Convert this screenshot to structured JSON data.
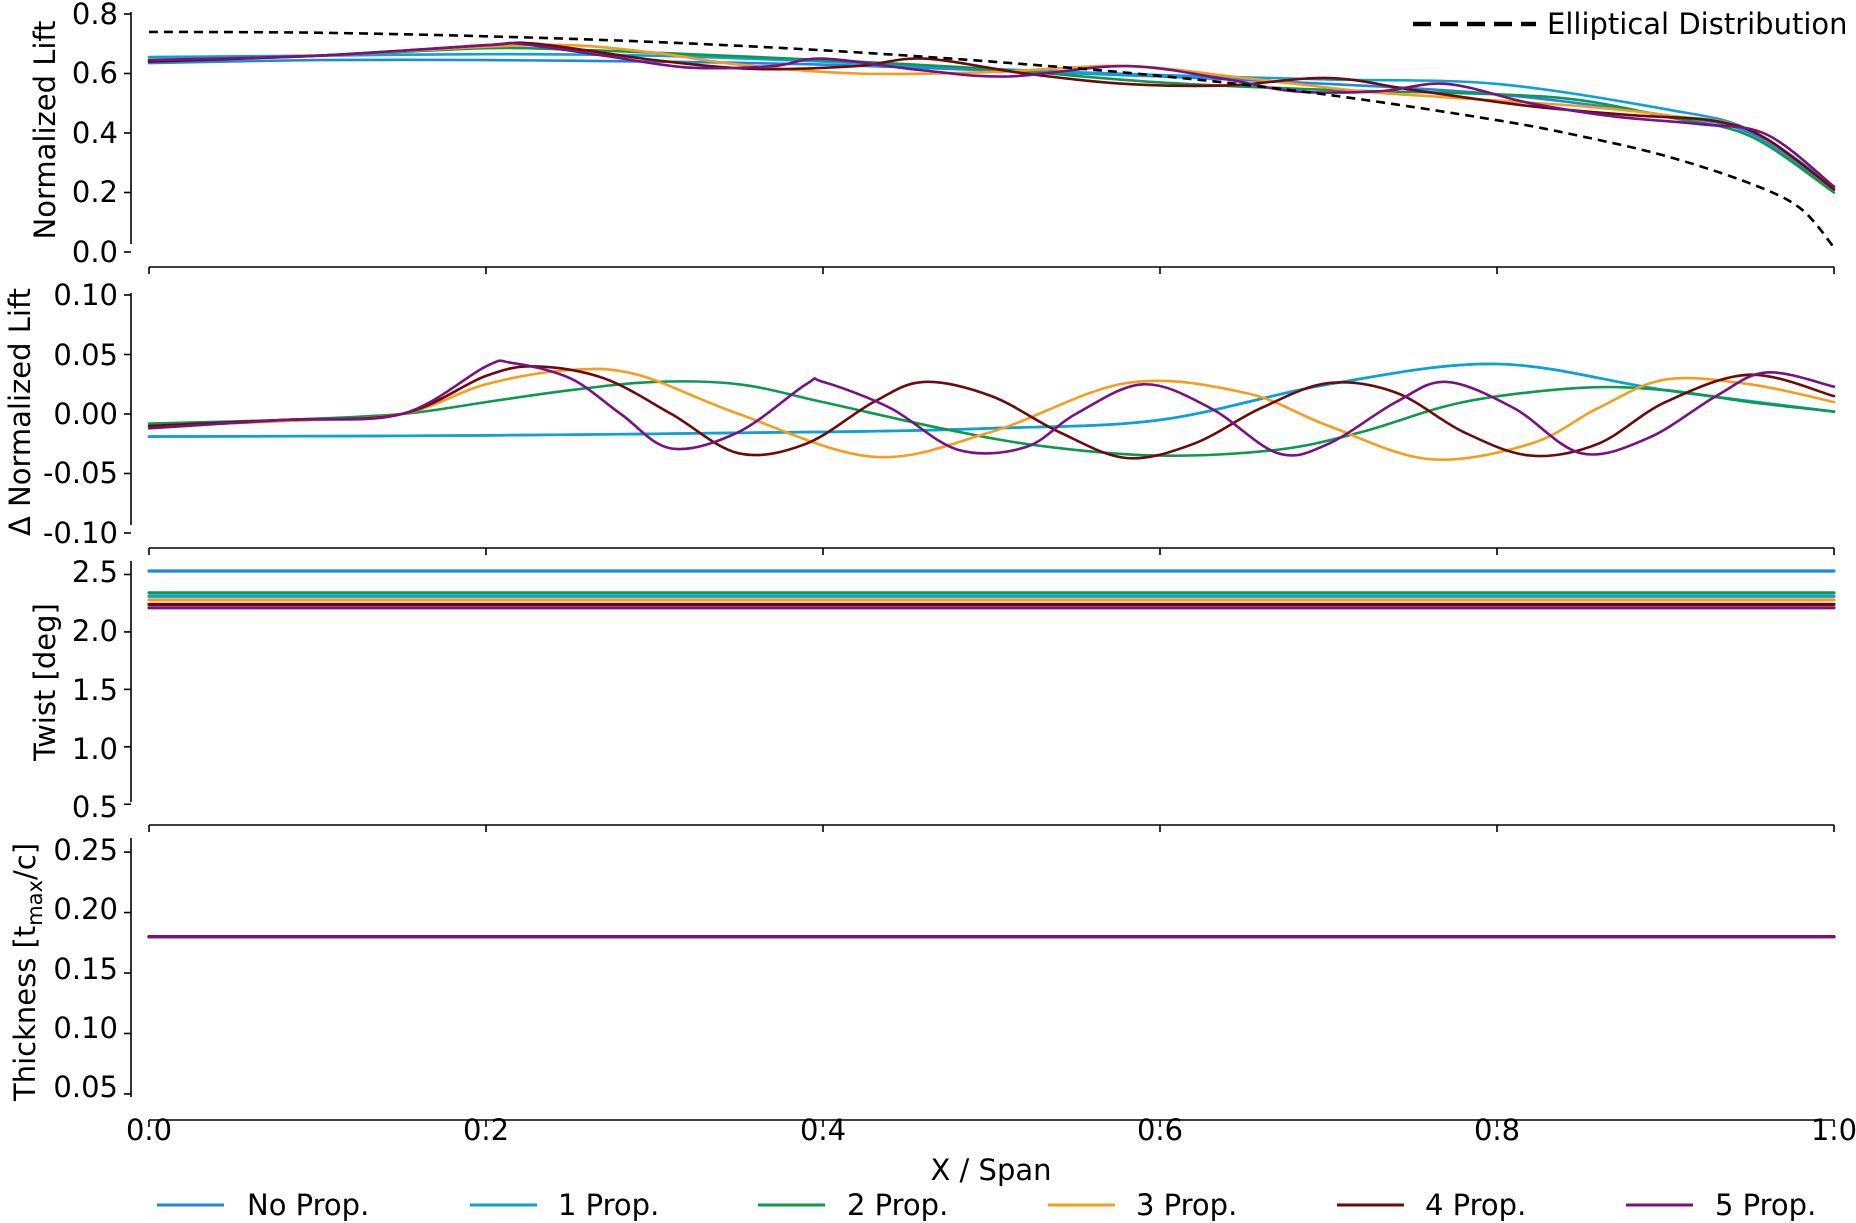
{
  "chart_data": {
    "type": "line",
    "x_label": "X / Span",
    "x_ticks": [
      "0.0",
      "0.2",
      "0.4",
      "0.6",
      "0.8",
      "1.0"
    ],
    "xlim": [
      0,
      1
    ],
    "legend": {
      "placement": "bottom",
      "entries": [
        {
          "name": "No Prop.",
          "color": "#1E88E5"
        },
        {
          "name": "1 Prop.",
          "color": "#0AA3D6"
        },
        {
          "name": "2 Prop.",
          "color": "#0B9A4E"
        },
        {
          "name": "3 Prop.",
          "color": "#F89C1C"
        },
        {
          "name": "4 Prop.",
          "color": "#6E0A0A"
        },
        {
          "name": "5 Prop.",
          "color": "#7A1183"
        }
      ]
    },
    "panels": [
      {
        "id": "lift",
        "ylabel": "Normalized Lift",
        "ylim": [
          0,
          0.8
        ],
        "yticks": [
          "0.0",
          "0.2",
          "0.4",
          "0.6",
          "0.8"
        ],
        "extra_legend": {
          "name": "Elliptical Distribution",
          "placement": "top-right",
          "style": "dashed",
          "color": "#000000"
        },
        "elliptical": {
          "x": [
            0.0,
            0.1,
            0.2,
            0.3,
            0.4,
            0.5,
            0.6,
            0.7,
            0.8,
            0.85,
            0.9,
            0.95,
            0.98,
            1.0
          ],
          "y": [
            0.74,
            0.737,
            0.725,
            0.706,
            0.678,
            0.64,
            0.592,
            0.528,
            0.443,
            0.389,
            0.323,
            0.231,
            0.147,
            0.015
          ]
        },
        "series": [
          {
            "name": "No Prop.",
            "x": [
              0.0,
              0.1,
              0.2,
              0.3,
              0.4,
              0.5,
              0.6,
              0.7,
              0.8,
              0.9,
              0.95,
              1.0
            ],
            "y": [
              0.635,
              0.645,
              0.645,
              0.64,
              0.63,
              0.61,
              0.59,
              0.565,
              0.53,
              0.46,
              0.4,
              0.21
            ]
          },
          {
            "name": "1 Prop.",
            "x": [
              0.0,
              0.1,
              0.2,
              0.3,
              0.4,
              0.5,
              0.6,
              0.7,
              0.8,
              0.9,
              0.95,
              1.0
            ],
            "y": [
              0.655,
              0.66,
              0.665,
              0.66,
              0.64,
              0.615,
              0.595,
              0.58,
              0.565,
              0.48,
              0.41,
              0.22
            ]
          },
          {
            "name": "2 Prop.",
            "x": [
              0.0,
              0.1,
              0.2,
              0.25,
              0.3,
              0.4,
              0.5,
              0.6,
              0.7,
              0.8,
              0.85,
              0.9,
              0.95,
              1.0
            ],
            "y": [
              0.645,
              0.66,
              0.685,
              0.68,
              0.67,
              0.645,
              0.615,
              0.57,
              0.545,
              0.53,
              0.51,
              0.455,
              0.39,
              0.2
            ]
          },
          {
            "name": "3 Prop.",
            "x": [
              0.0,
              0.1,
              0.2,
              0.25,
              0.3,
              0.35,
              0.42,
              0.5,
              0.58,
              0.65,
              0.72,
              0.77,
              0.85,
              0.9,
              0.95,
              1.0
            ],
            "y": [
              0.645,
              0.66,
              0.69,
              0.695,
              0.67,
              0.63,
              0.6,
              0.605,
              0.625,
              0.585,
              0.54,
              0.52,
              0.49,
              0.46,
              0.41,
              0.21
            ]
          },
          {
            "name": "4 Prop.",
            "x": [
              0.0,
              0.1,
              0.2,
              0.23,
              0.3,
              0.36,
              0.42,
              0.46,
              0.52,
              0.58,
              0.64,
              0.7,
              0.75,
              0.82,
              0.88,
              0.93,
              0.96,
              1.0
            ],
            "y": [
              0.64,
              0.66,
              0.695,
              0.7,
              0.645,
              0.615,
              0.625,
              0.65,
              0.6,
              0.565,
              0.56,
              0.585,
              0.545,
              0.49,
              0.46,
              0.44,
              0.38,
              0.21
            ]
          },
          {
            "name": "5 Prop.",
            "x": [
              0.0,
              0.1,
              0.2,
              0.22,
              0.27,
              0.32,
              0.37,
              0.4,
              0.46,
              0.51,
              0.58,
              0.64,
              0.68,
              0.73,
              0.77,
              0.82,
              0.87,
              0.92,
              0.96,
              1.0
            ],
            "y": [
              0.645,
              0.66,
              0.695,
              0.7,
              0.66,
              0.62,
              0.625,
              0.65,
              0.61,
              0.59,
              0.625,
              0.58,
              0.54,
              0.54,
              0.565,
              0.5,
              0.455,
              0.43,
              0.395,
              0.22
            ]
          }
        ]
      },
      {
        "id": "delta",
        "ylabel": "Δ Normalized Lift",
        "ylim": [
          -0.1,
          0.1
        ],
        "yticks": [
          "0.10",
          "0.05",
          "0.00",
          "-0.05",
          "-0.10"
        ],
        "series": [
          {
            "name": "No Prop.",
            "x": [
              0.0,
              0.2,
              0.4,
              0.5,
              0.6,
              0.7,
              0.8,
              0.9,
              1.0
            ],
            "y": [
              -0.019,
              -0.018,
              -0.015,
              -0.012,
              -0.005,
              0.025,
              0.042,
              0.02,
              0.002
            ]
          },
          {
            "name": "1 Prop.",
            "x": [
              0.0,
              0.2,
              0.4,
              0.5,
              0.6,
              0.7,
              0.8,
              0.9,
              1.0
            ],
            "y": [
              -0.019,
              -0.018,
              -0.015,
              -0.012,
              -0.005,
              0.025,
              0.042,
              0.02,
              0.002
            ]
          },
          {
            "name": "2 Prop.",
            "x": [
              0.0,
              0.08,
              0.15,
              0.2,
              0.25,
              0.3,
              0.35,
              0.4,
              0.47,
              0.53,
              0.6,
              0.67,
              0.72,
              0.78,
              0.85,
              0.9,
              0.95,
              1.0
            ],
            "y": [
              -0.008,
              -0.005,
              0.0,
              0.01,
              0.02,
              0.027,
              0.025,
              0.01,
              -0.012,
              -0.027,
              -0.035,
              -0.03,
              -0.015,
              0.01,
              0.022,
              0.02,
              0.01,
              0.002
            ]
          },
          {
            "name": "3 Prop.",
            "x": [
              0.0,
              0.08,
              0.15,
              0.2,
              0.25,
              0.29,
              0.35,
              0.43,
              0.5,
              0.58,
              0.65,
              0.7,
              0.76,
              0.82,
              0.86,
              0.9,
              0.95,
              1.0
            ],
            "y": [
              -0.01,
              -0.006,
              0.0,
              0.025,
              0.037,
              0.033,
              0.0,
              -0.036,
              -0.015,
              0.026,
              0.018,
              -0.01,
              -0.038,
              -0.025,
              0.005,
              0.029,
              0.025,
              0.01
            ]
          },
          {
            "name": "4 Prop.",
            "x": [
              0.0,
              0.08,
              0.15,
              0.2,
              0.23,
              0.27,
              0.31,
              0.35,
              0.39,
              0.43,
              0.46,
              0.5,
              0.54,
              0.58,
              0.62,
              0.66,
              0.7,
              0.74,
              0.78,
              0.82,
              0.86,
              0.9,
              0.95,
              1.0
            ],
            "y": [
              -0.01,
              -0.005,
              0.0,
              0.032,
              0.04,
              0.03,
              0.0,
              -0.033,
              -0.025,
              0.01,
              0.027,
              0.015,
              -0.015,
              -0.037,
              -0.025,
              0.005,
              0.026,
              0.018,
              -0.015,
              -0.035,
              -0.025,
              0.01,
              0.033,
              0.015
            ]
          },
          {
            "name": "5 Prop.",
            "x": [
              0.0,
              0.08,
              0.15,
              0.2,
              0.215,
              0.25,
              0.28,
              0.31,
              0.35,
              0.39,
              0.4,
              0.44,
              0.48,
              0.52,
              0.55,
              0.59,
              0.63,
              0.67,
              0.7,
              0.74,
              0.77,
              0.81,
              0.85,
              0.89,
              0.93,
              0.96,
              1.0
            ],
            "y": [
              -0.012,
              -0.005,
              0.0,
              0.04,
              0.043,
              0.03,
              0.0,
              -0.029,
              -0.015,
              0.025,
              0.027,
              0.005,
              -0.03,
              -0.028,
              0.0,
              0.025,
              0.005,
              -0.033,
              -0.025,
              0.01,
              0.027,
              0.005,
              -0.033,
              -0.02,
              0.015,
              0.035,
              0.023
            ]
          }
        ]
      },
      {
        "id": "twist",
        "ylabel": "Twist [deg]",
        "ylim": [
          0.45,
          2.6
        ],
        "yticks": [
          "2.5",
          "2.0",
          "1.5",
          "1.0",
          "0.5"
        ],
        "series": [
          {
            "name": "No Prop.",
            "x": [
              0.0,
              1.0
            ],
            "y": [
              2.53,
              2.53
            ]
          },
          {
            "name": "1 Prop.",
            "x": [
              0.0,
              1.0
            ],
            "y": [
              2.31,
              2.31
            ]
          },
          {
            "name": "2 Prop.",
            "x": [
              0.0,
              1.0
            ],
            "y": [
              2.34,
              2.34
            ]
          },
          {
            "name": "3 Prop.",
            "x": [
              0.0,
              1.0
            ],
            "y": [
              2.28,
              2.28
            ]
          },
          {
            "name": "4 Prop.",
            "x": [
              0.0,
              1.0
            ],
            "y": [
              2.24,
              2.24
            ]
          },
          {
            "name": "5 Prop.",
            "x": [
              0.0,
              1.0
            ],
            "y": [
              2.21,
              2.21
            ]
          }
        ]
      },
      {
        "id": "thickness",
        "ylabel_main": "Thickness [t",
        "ylabel_sub": "max",
        "ylabel_end": "/c]",
        "ylim": [
          0.045,
          0.26
        ],
        "yticks": [
          "0.25",
          "0.20",
          "0.15",
          "0.10",
          "0.05"
        ],
        "series": [
          {
            "name": "No Prop.",
            "x": [
              0.0,
              1.0
            ],
            "y": [
              0.18,
              0.18
            ]
          },
          {
            "name": "1 Prop.",
            "x": [
              0.0,
              1.0
            ],
            "y": [
              0.18,
              0.18
            ]
          },
          {
            "name": "2 Prop.",
            "x": [
              0.0,
              1.0
            ],
            "y": [
              0.18,
              0.18
            ]
          },
          {
            "name": "3 Prop.",
            "x": [
              0.0,
              1.0
            ],
            "y": [
              0.18,
              0.18
            ]
          },
          {
            "name": "4 Prop.",
            "x": [
              0.0,
              1.0
            ],
            "y": [
              0.18,
              0.18
            ]
          },
          {
            "name": "5 Prop.",
            "x": [
              0.0,
              1.0
            ],
            "y": [
              0.18,
              0.18
            ]
          }
        ]
      }
    ]
  }
}
